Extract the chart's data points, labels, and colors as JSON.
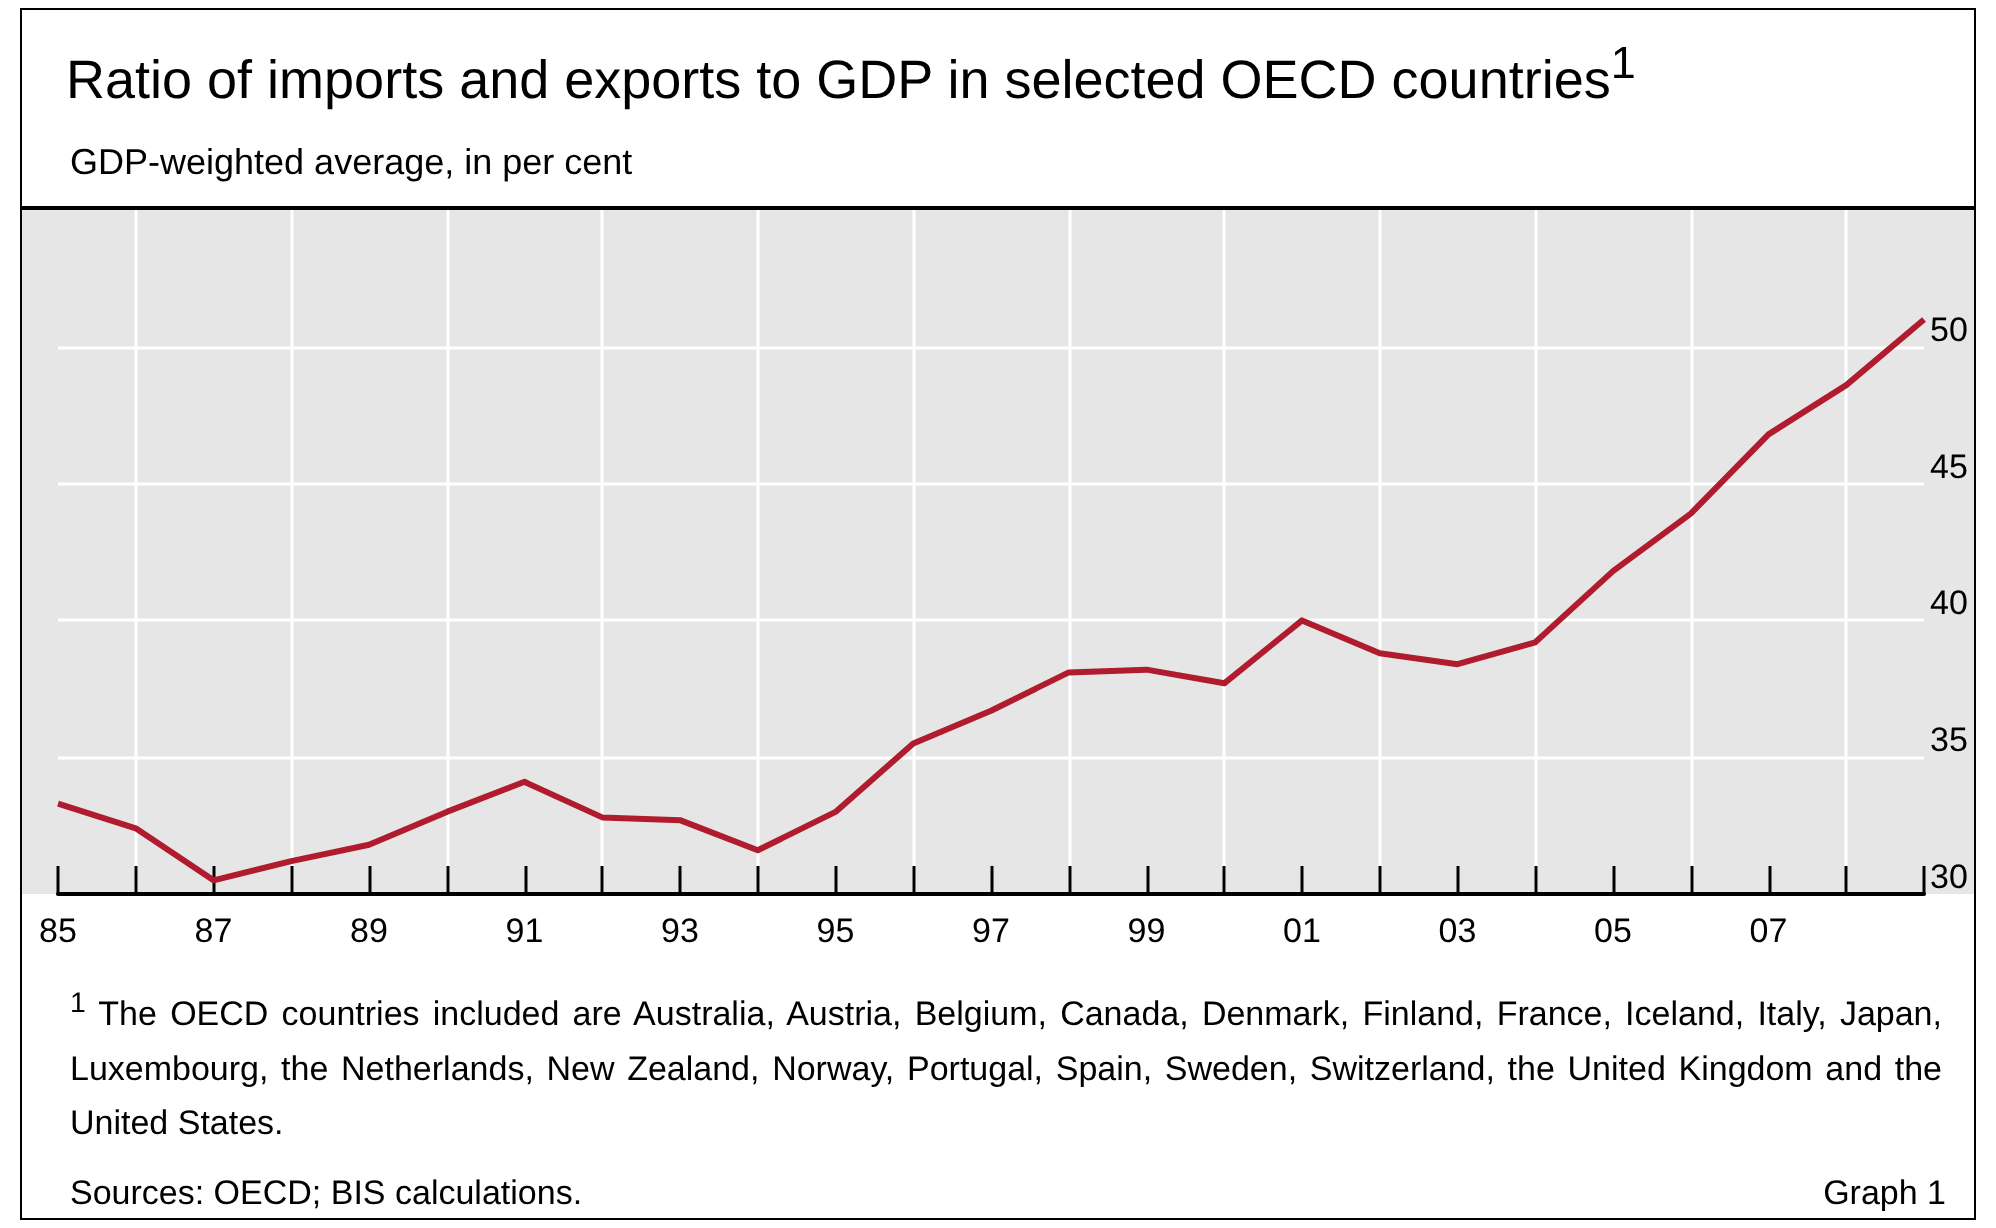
{
  "chart_data": {
    "type": "line",
    "title": "Ratio of imports and exports to GDP in selected OECD countries$^{1}$",
    "subtitle": "GDP-weighted average, in per cent",
    "annotations": [
      "$^{1}$ The OECD countries included are Australia, Austria, Belgium, Canada, Denmark, Finland, France, Iceland, Italy, Japan, Luxembourg, the Netherlands, New Zealand, Norway, Portugal, Spain, Sweden, Switzerland, the United Kingdom and the United States.",
      "Sources: OECD; BIS calculations.",
      "Graph 1"
    ],
    "categories": [
      "85",
      null,
      "87",
      null,
      "89",
      null,
      "91",
      null,
      "93",
      null,
      "95",
      null,
      "97",
      null,
      "99",
      null,
      "01",
      null,
      "03",
      null,
      "05",
      null,
      "07",
      null,
      null
    ],
    "series": [
      {
        "color": "#b01c2e",
        "values": [
          33.3,
          32.4,
          30.5,
          31.2,
          31.8,
          33.0,
          34.1,
          32.8,
          32.7,
          31.6,
          33.0,
          35.5,
          36.7,
          38.1,
          38.2,
          37.7,
          40.0,
          38.8,
          38.4,
          39.2,
          41.8,
          43.9,
          46.8,
          48.6,
          51.0
        ]
      }
    ],
    "ylim": [
      30,
      55
    ],
    "yticks": [
      30,
      35,
      40,
      45,
      50
    ],
    "grid": true,
    "marker": "none"
  }
}
